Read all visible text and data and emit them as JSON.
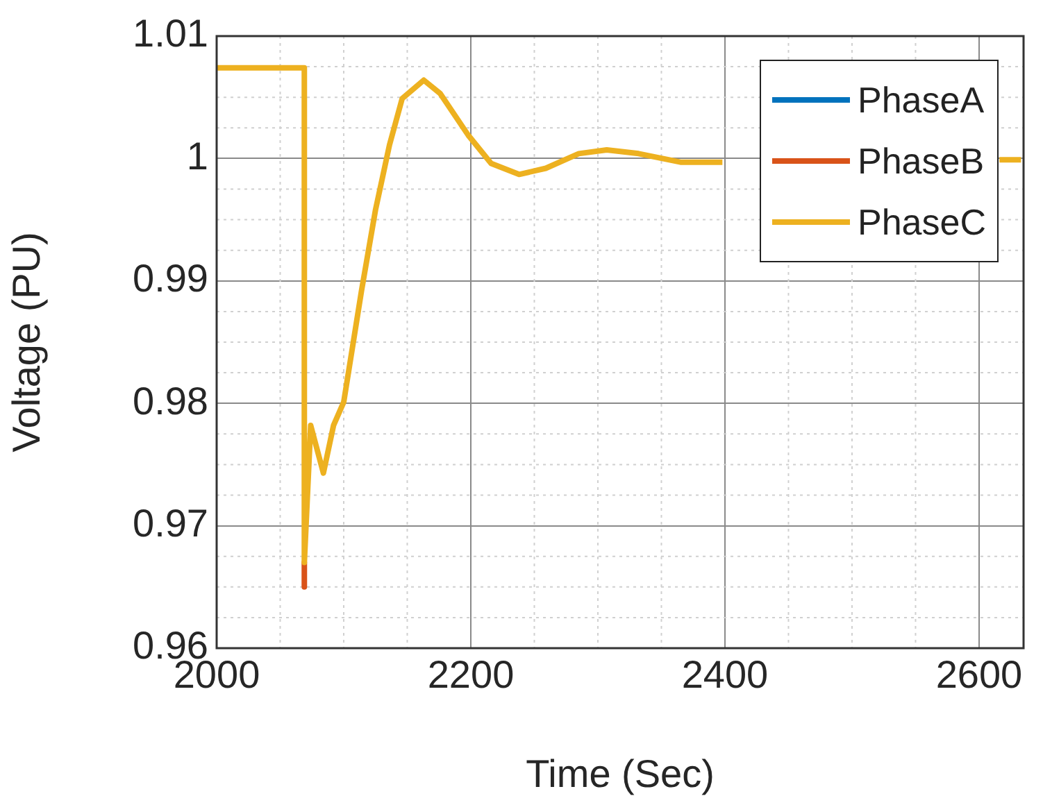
{
  "chart_data": {
    "type": "line",
    "xlabel": "Time (Sec)",
    "ylabel": "Voltage (PU)",
    "x": [
      2000,
      2069,
      2069,
      2069,
      2074,
      2084,
      2092,
      2100,
      2114,
      2125,
      2136,
      2146,
      2163,
      2176,
      2198,
      2216,
      2238,
      2259,
      2285,
      2307,
      2332,
      2365,
      2398,
      2500,
      2616,
      2633
    ],
    "series": [
      {
        "name": "PhaseA",
        "color": "#0072bd",
        "values": [
          null,
          null,
          null,
          null,
          null,
          null,
          null,
          null,
          null,
          null,
          null,
          null,
          null,
          null,
          null,
          null,
          null,
          null,
          null,
          null,
          null,
          null,
          null,
          null,
          null,
          null
        ]
      },
      {
        "name": "PhaseB",
        "color": "#d95319",
        "values": [
          null,
          null,
          0.967,
          0.965,
          null,
          null,
          null,
          null,
          null,
          null,
          null,
          null,
          null,
          null,
          null,
          null,
          null,
          null,
          null,
          null,
          null,
          null,
          null,
          null,
          null,
          null
        ]
      },
      {
        "name": "PhaseC",
        "color": "#edb120",
        "values": [
          1.0074,
          1.0074,
          0.967,
          0.967,
          0.9782,
          0.9743,
          0.9782,
          0.9801,
          0.9892,
          0.9958,
          1.0011,
          1.0049,
          1.0064,
          1.0053,
          1.0019,
          0.9996,
          0.9987,
          0.9992,
          1.0004,
          1.0007,
          1.0004,
          0.9997,
          0.9997,
          null,
          0.9999,
          0.9999
        ]
      }
    ],
    "xlim": [
      2000,
      2635
    ],
    "xticks": [
      2000,
      2200,
      2400,
      2600
    ],
    "ylim": [
      0.96,
      1.01
    ],
    "yticks": [
      0.96,
      0.97,
      0.98,
      0.99,
      1,
      1.01
    ],
    "grid": true,
    "legend": "top right",
    "marker": "none",
    "line_style": "solid"
  }
}
